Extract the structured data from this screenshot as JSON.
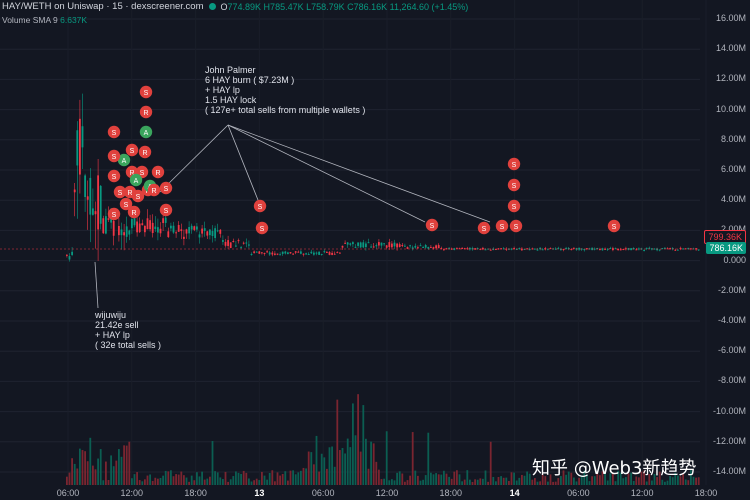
{
  "header": {
    "pair": "HAY/WETH on Uniswap · 15 · dexscreener.com",
    "ohlc_prefix": "O",
    "ohlc_values": "774.89K H785.47K L758.79K C786.16K 11,264.60 (+1.45%)"
  },
  "volume_label": {
    "name": "Volume SMA 9",
    "value": "6.637K"
  },
  "y_axis_ticks": [
    "16.00M",
    "14.00M",
    "12.00M",
    "10.00M",
    "8.00M",
    "6.00M",
    "4.00M",
    "2.00M",
    "0.000",
    "-2.00M",
    "-4.00M",
    "-6.00M",
    "-8.00M",
    "-10.00M",
    "-12.00M",
    "-14.00M"
  ],
  "x_axis_ticks": [
    {
      "label": "06:00",
      "bold": false
    },
    {
      "label": "12:00",
      "bold": false
    },
    {
      "label": "18:00",
      "bold": false
    },
    {
      "label": "13",
      "bold": true
    },
    {
      "label": "06:00",
      "bold": false
    },
    {
      "label": "12:00",
      "bold": false
    },
    {
      "label": "18:00",
      "bold": false
    },
    {
      "label": "14",
      "bold": true
    },
    {
      "label": "06:00",
      "bold": false
    },
    {
      "label": "12:00",
      "bold": false
    },
    {
      "label": "18:00",
      "bold": false
    }
  ],
  "price_tags": {
    "upper": "799.36K",
    "lower": "786.16K"
  },
  "annotations": {
    "john": "John Palmer\n6 HAY burn ( $7.23M )\n+ HAY lp\n1.5 HAY lock\n( 127e+ total sells from multiple wallets )",
    "wiju": "wijuwiju\n21.42e sell\n+ HAY lp\n( 32e total sells )"
  },
  "markers": {
    "sell_letter": "S",
    "buy_letter": "A",
    "remove_letter": "R",
    "sell_color": "#e0413d",
    "buy_color": "#3aa55d"
  },
  "colors": {
    "up": "#089981",
    "down": "#f23645",
    "background": "#131722"
  },
  "watermark": "知乎 @Web3新趋势"
}
